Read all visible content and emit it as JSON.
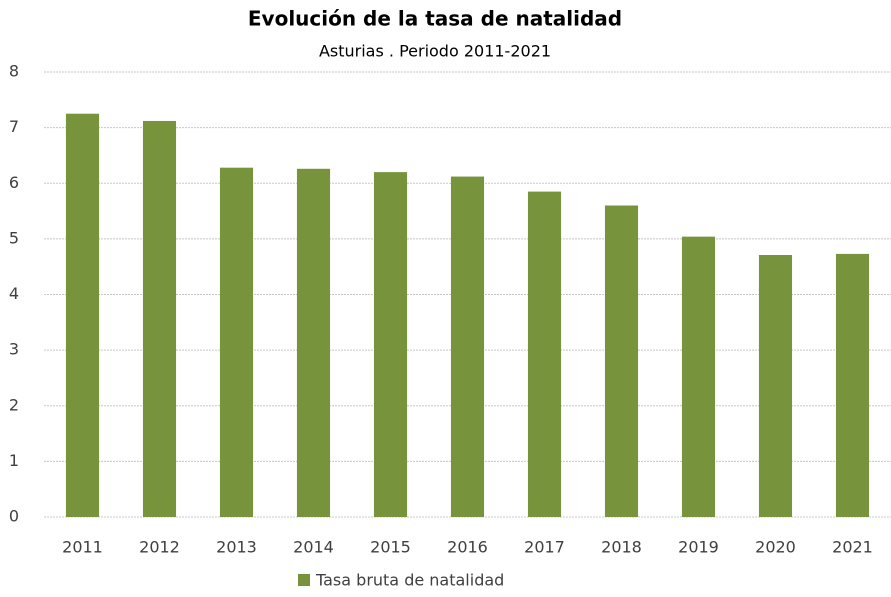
{
  "chart_data": {
    "type": "bar",
    "title": "Evolución de la tasa de natalidad",
    "subtitle": "Asturias . Periodo 2011-2021",
    "categories": [
      "2011",
      "2012",
      "2013",
      "2014",
      "2015",
      "2016",
      "2017",
      "2018",
      "2019",
      "2020",
      "2021"
    ],
    "series": [
      {
        "name": "Tasa bruta de natalidad",
        "color": "#77933c",
        "values": [
          7.25,
          7.12,
          6.28,
          6.26,
          6.2,
          6.12,
          5.85,
          5.6,
          5.04,
          4.71,
          4.73
        ]
      }
    ],
    "ylim": [
      0,
      8
    ],
    "yticks": [
      0,
      1,
      2,
      3,
      4,
      5,
      6,
      7,
      8
    ],
    "grid": true,
    "legend": "bottom"
  }
}
